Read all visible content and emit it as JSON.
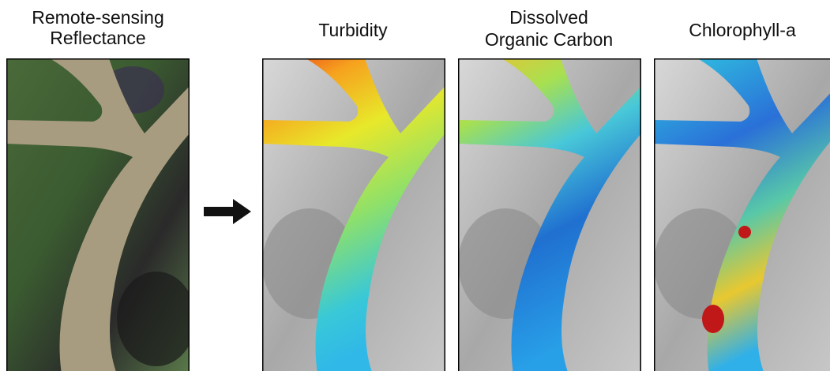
{
  "panels": [
    {
      "title_lines": [
        "Remote-sensing",
        "Reflectance"
      ]
    },
    {
      "title_lines": [
        "Turbidity"
      ]
    },
    {
      "title_lines": [
        "Dissolved",
        "Organic Carbon"
      ]
    },
    {
      "title_lines": [
        "Chlorophyll-a"
      ]
    }
  ]
}
